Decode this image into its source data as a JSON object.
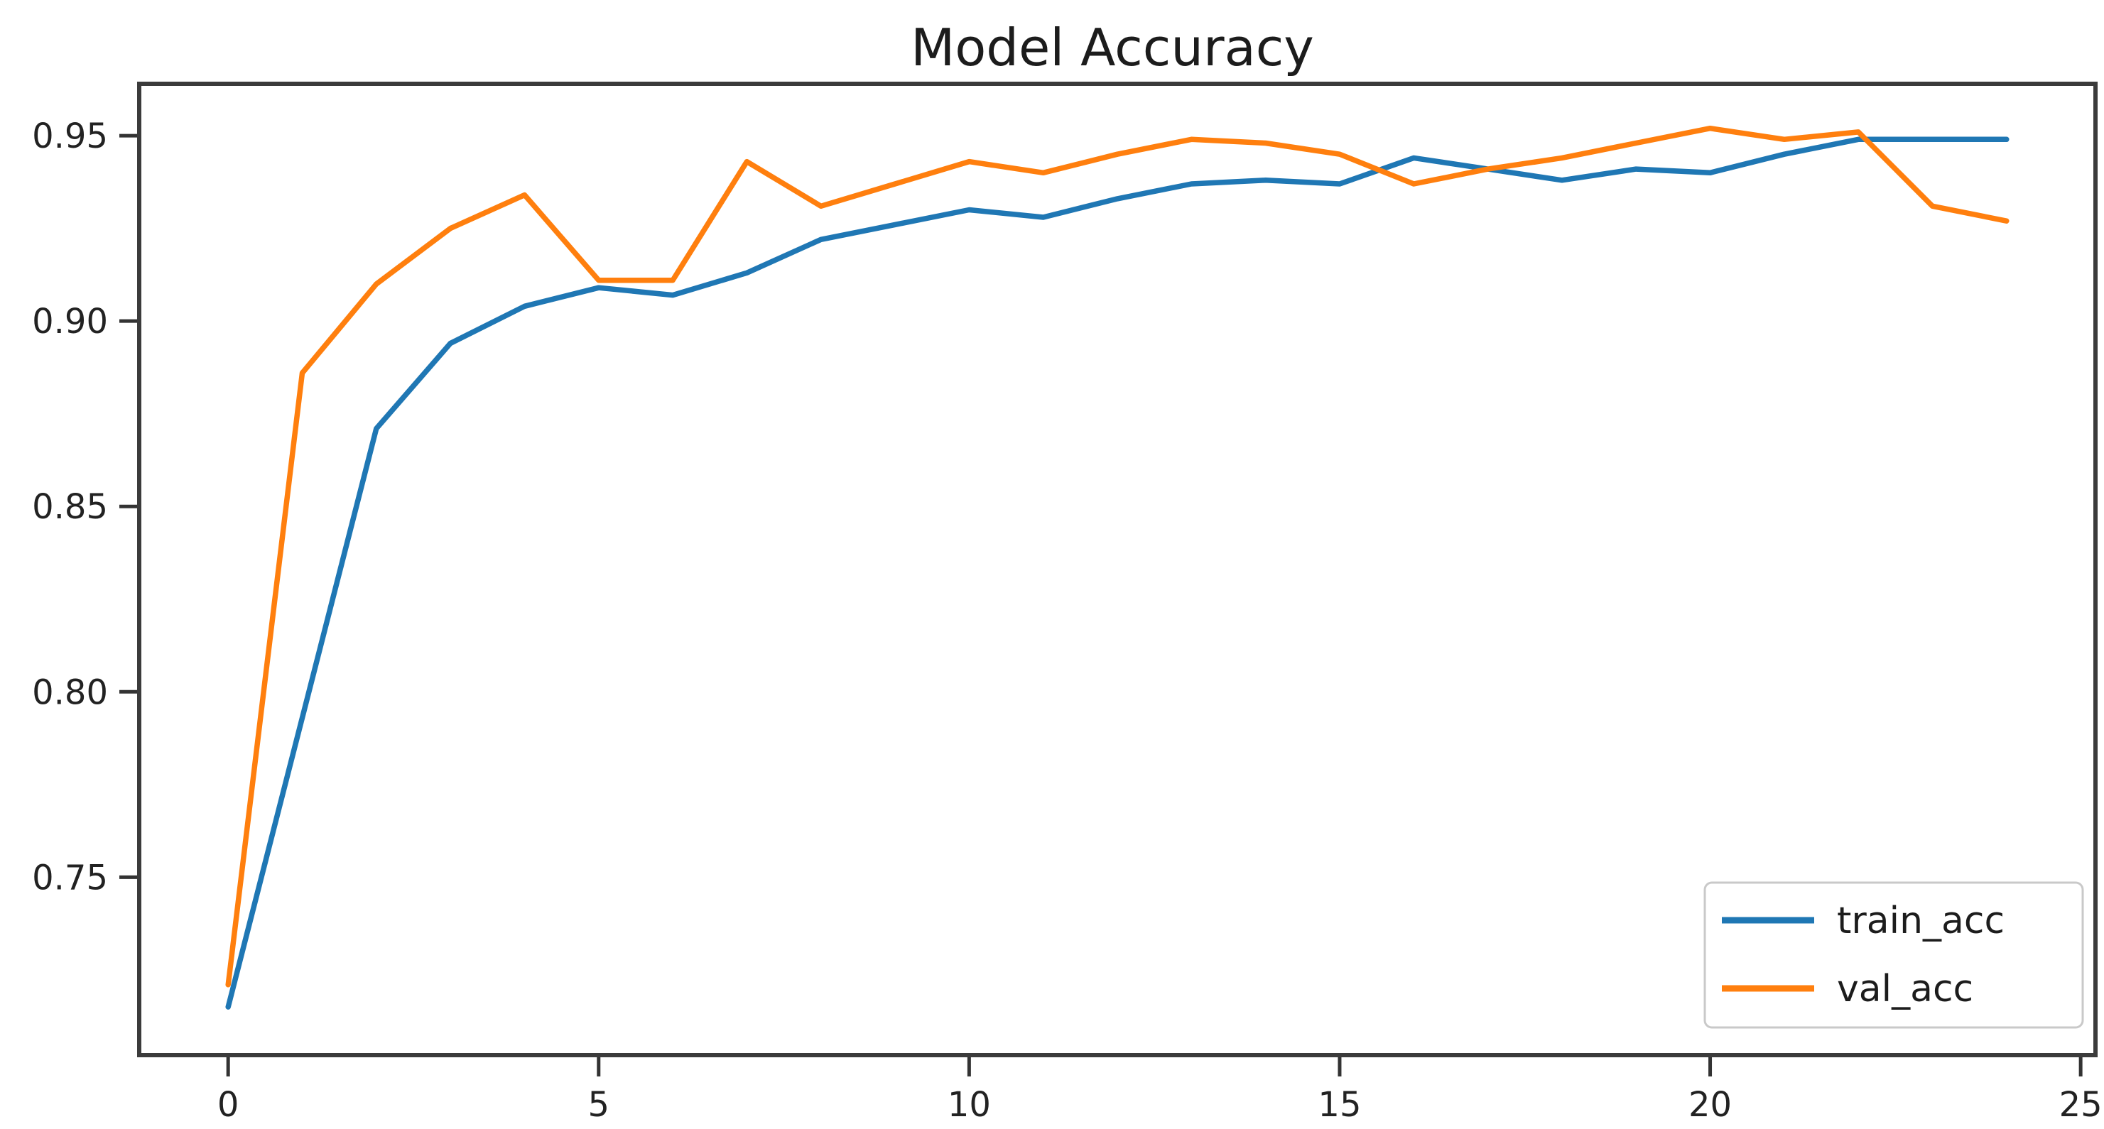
{
  "chart_data": {
    "type": "line",
    "title": "Model Accuracy",
    "xlabel": "",
    "ylabel": "",
    "x": [
      0,
      1,
      2,
      3,
      4,
      5,
      6,
      7,
      8,
      9,
      10,
      11,
      12,
      13,
      14,
      15,
      16,
      17,
      18,
      19,
      20,
      21,
      22,
      23,
      24
    ],
    "series": [
      {
        "name": "train_acc",
        "color": "#1f77b4",
        "values": [
          0.715,
          0.793,
          0.871,
          0.894,
          0.904,
          0.909,
          0.907,
          0.913,
          0.922,
          0.926,
          0.93,
          0.928,
          0.933,
          0.937,
          0.938,
          0.937,
          0.944,
          0.941,
          0.938,
          0.941,
          0.94,
          0.945,
          0.949,
          0.949,
          0.949
        ]
      },
      {
        "name": "val_acc",
        "color": "#ff7f0e",
        "values": [
          0.721,
          0.886,
          0.91,
          0.925,
          0.934,
          0.911,
          0.911,
          0.943,
          0.931,
          0.937,
          0.943,
          0.94,
          0.945,
          0.949,
          0.948,
          0.945,
          0.937,
          0.941,
          0.944,
          0.948,
          0.952,
          0.949,
          0.951,
          0.931,
          0.927
        ]
      }
    ],
    "xlim": [
      -1.2,
      25.2
    ],
    "ylim": [
      0.702,
      0.964
    ],
    "xticks": [
      0,
      5,
      10,
      15,
      20,
      25
    ],
    "xtick_labels": [
      "0",
      "5",
      "10",
      "15",
      "20",
      "25"
    ],
    "yticks": [
      0.75,
      0.8,
      0.85,
      0.9,
      0.95
    ],
    "ytick_labels": [
      "0.75",
      "0.80",
      "0.85",
      "0.90",
      "0.95"
    ],
    "grid": false,
    "legend_position": "lower right",
    "frame_color": "#3b3b3b",
    "tick_color": "#333333",
    "background_color": "#ffffff"
  }
}
